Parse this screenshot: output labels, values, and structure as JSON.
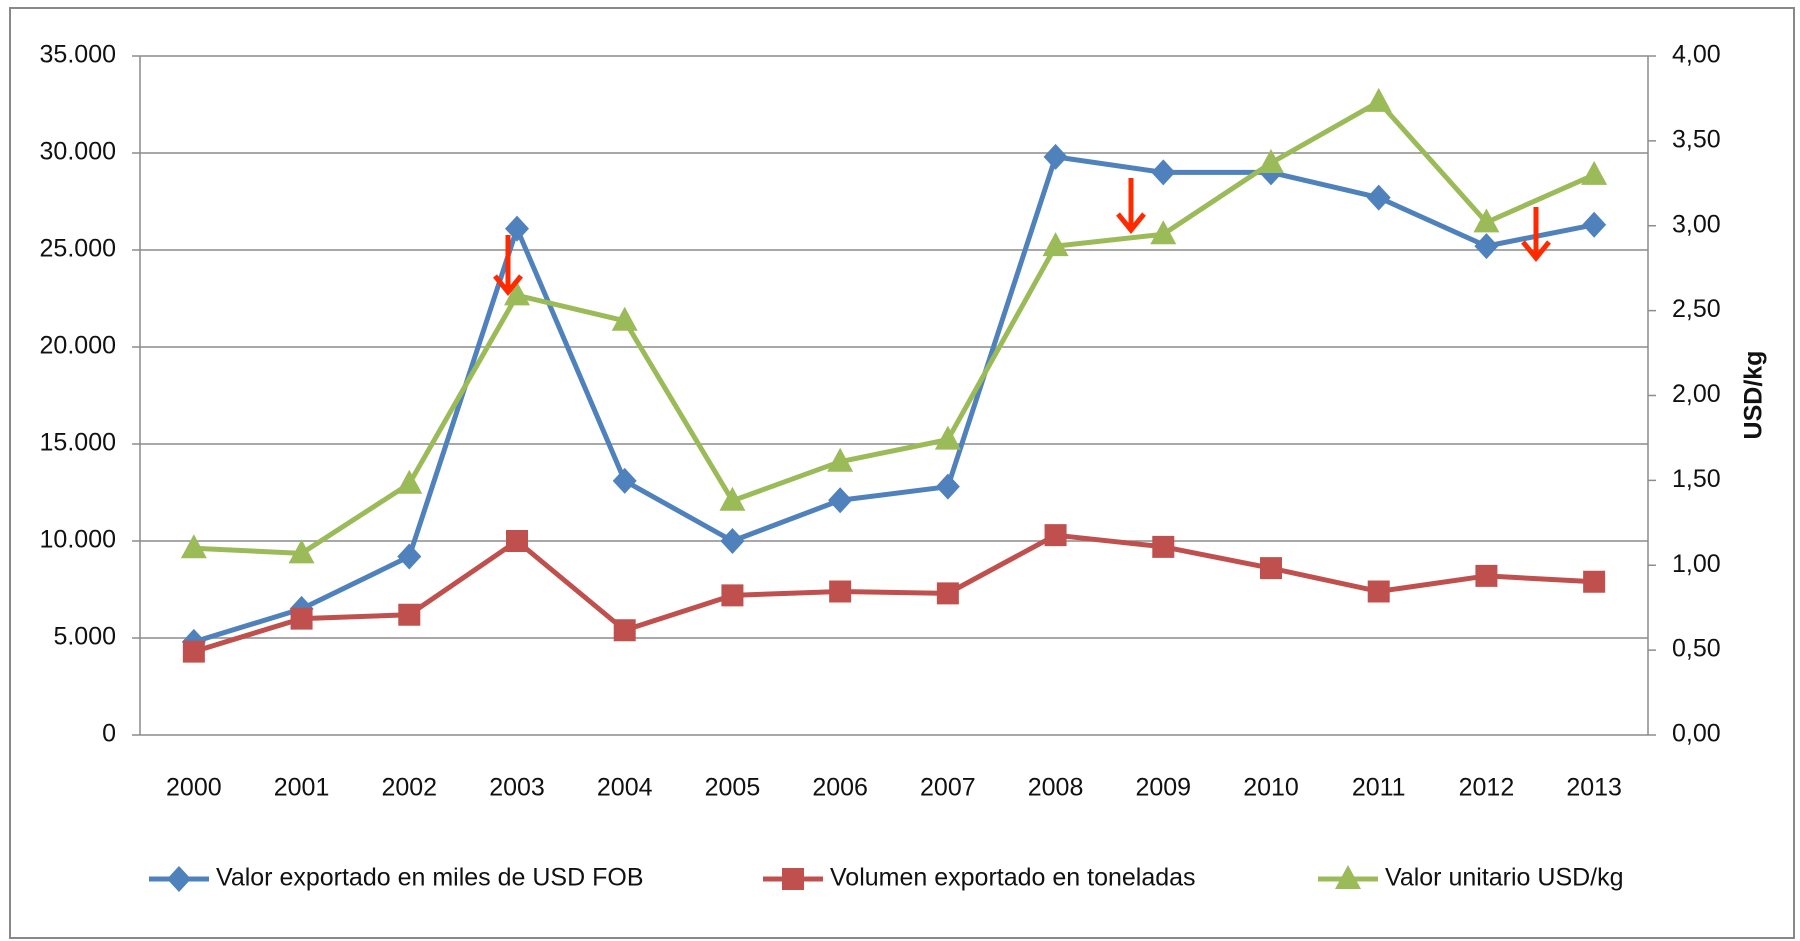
{
  "chart_data": {
    "type": "line",
    "categories": [
      "2000",
      "2001",
      "2002",
      "2003",
      "2004",
      "2005",
      "2006",
      "2007",
      "2008",
      "2009",
      "2010",
      "2011",
      "2012",
      "2013"
    ],
    "y2_axis_label": "USD/kg",
    "ylim": [
      0,
      35000
    ],
    "yticks": [
      0,
      {
        "value": 5000,
        "label": "5.000"
      },
      {
        "value": 10000,
        "label": "10.000"
      },
      {
        "value": 15000,
        "label": "15.000"
      },
      {
        "value": 20000,
        "label": "20.000"
      },
      {
        "value": 25000,
        "label": "25.000"
      },
      {
        "value": 30000,
        "label": "30.000"
      },
      {
        "value": 35000,
        "label": "35.000"
      }
    ],
    "y2lim": [
      0,
      4
    ],
    "y2ticks": [
      {
        "value": 0,
        "label": "0,00"
      },
      {
        "value": 0.5,
        "label": "0,50"
      },
      {
        "value": 1,
        "label": "1,00"
      },
      {
        "value": 1.5,
        "label": "1,50"
      },
      {
        "value": 2,
        "label": "2,00"
      },
      {
        "value": 2.5,
        "label": "2,50"
      },
      {
        "value": 3,
        "label": "3,00"
      },
      {
        "value": 3.5,
        "label": "3,50"
      },
      {
        "value": 4,
        "label": "4,00"
      }
    ],
    "grid": true,
    "legend": "bottom",
    "series": [
      {
        "name": "Valor exportado en miles de USD FOB",
        "color": "#4f81bd",
        "marker": "diamond",
        "values": [
          4800,
          6500,
          9200,
          26100,
          13100,
          10000,
          12100,
          12800,
          29800,
          29000,
          29000,
          27700,
          25200,
          26300
        ]
      },
      {
        "name": "Volumen exportado en toneladas",
        "color": "#c0504d",
        "marker": "square",
        "values": [
          4300,
          6000,
          6200,
          10000,
          5400,
          7200,
          7400,
          7300,
          10300,
          9700,
          8600,
          7400,
          8200,
          7900
        ]
      },
      {
        "name": "Valor unitario USD/kg",
        "color": "#9bbb59",
        "marker": "triangle",
        "axis": "y2",
        "values": [
          1.1,
          1.07,
          1.48,
          2.59,
          2.44,
          1.38,
          1.61,
          1.74,
          2.88,
          2.95,
          3.37,
          3.73,
          3.02,
          3.3
        ]
      }
    ]
  }
}
